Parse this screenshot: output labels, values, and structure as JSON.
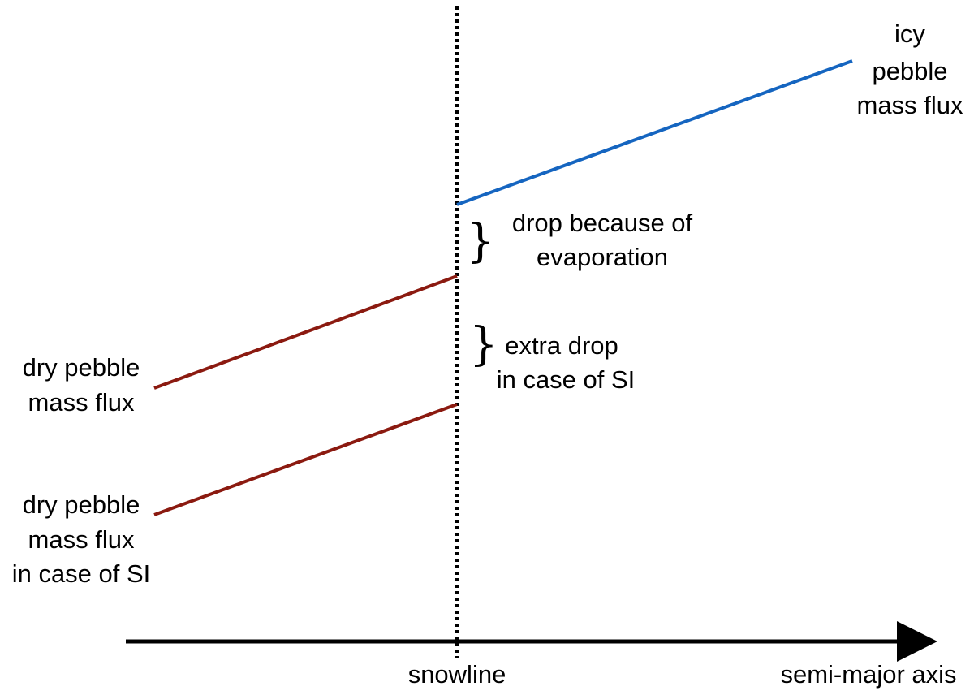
{
  "axis": {
    "x_label": "semi-major axis",
    "snowline_label": "snowline"
  },
  "lines": {
    "icy_flux": {
      "label": [
        "icy",
        "pebble",
        "mass flux"
      ],
      "color": "#1565c0"
    },
    "dry_flux": {
      "label": [
        "dry pebble",
        "mass flux"
      ],
      "color": "#8b1a10"
    },
    "dry_flux_si": {
      "label": [
        "dry pebble",
        "mass flux",
        "in case of SI"
      ],
      "color": "#8b1a10"
    }
  },
  "annotations": {
    "evaporation_drop": [
      "drop because of",
      "evaporation"
    ],
    "si_drop": [
      "extra drop",
      "in case of SI"
    ]
  },
  "colors": {
    "axis": "#000000",
    "snowline": "#000000",
    "icy": "#1565c0",
    "dry": "#8b1a10"
  }
}
